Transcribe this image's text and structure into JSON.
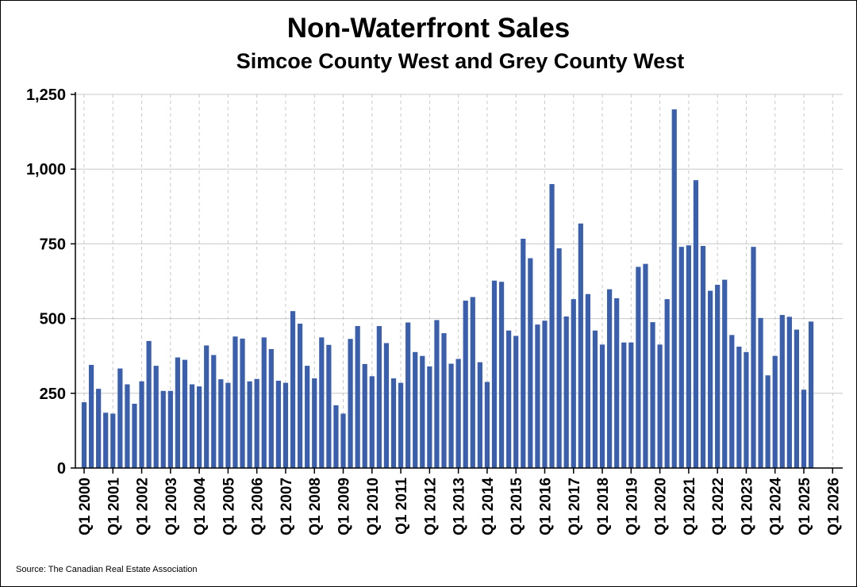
{
  "chart_data": {
    "type": "bar",
    "title": "Non-Waterfront Sales",
    "subtitle": "Simcoe County West and Grey County West",
    "source": "Source: The Canadian Real Estate Association",
    "ylim": [
      0,
      1250
    ],
    "yticks": [
      "0",
      "250",
      "500",
      "750",
      "1,000",
      "1,250"
    ],
    "ytick_values": [
      0,
      250,
      500,
      750,
      1000,
      1250
    ],
    "xtick_labels": [
      "Q1 2000",
      "Q1 2001",
      "Q1 2002",
      "Q1 2003",
      "Q1 2004",
      "Q1 2005",
      "Q1 2006",
      "Q1 2007",
      "Q1 2008",
      "Q1 2009",
      "Q1 2010",
      "Q1 2011",
      "Q1 2012",
      "Q1 2013",
      "Q1 2014",
      "Q1 2015",
      "Q1 2016",
      "Q1 2017",
      "Q1 2018",
      "Q1 2019",
      "Q1 2020",
      "Q1 2021",
      "Q1 2022",
      "Q1 2023",
      "Q1 2024",
      "Q1 2025",
      "Q1 2026"
    ],
    "grid": {
      "horizontal": true,
      "vertical_dashed": true
    },
    "bar_color": "#3a5fad",
    "series": [
      {
        "values": [
          220,
          345,
          265,
          185,
          182,
          333,
          280,
          215,
          290,
          425,
          342,
          258,
          258,
          370,
          362,
          280,
          273,
          410,
          378,
          297,
          285,
          440,
          433,
          290,
          298,
          437,
          398,
          292,
          285,
          525,
          483,
          342,
          300,
          437,
          412,
          210,
          182,
          432,
          475,
          348,
          307,
          475,
          418,
          300,
          285,
          487,
          388,
          375,
          340,
          495,
          451,
          349,
          365,
          560,
          572,
          354,
          288,
          627,
          623,
          460,
          442,
          767,
          702,
          480,
          493,
          950,
          735,
          507,
          565,
          818,
          582,
          460,
          413,
          598,
          568,
          420,
          420,
          673,
          683,
          488,
          413,
          565,
          1200,
          740,
          745,
          963,
          743,
          593,
          613,
          630,
          445,
          406,
          388,
          740,
          502,
          310,
          375,
          512,
          506,
          463,
          262,
          490
        ]
      }
    ]
  }
}
